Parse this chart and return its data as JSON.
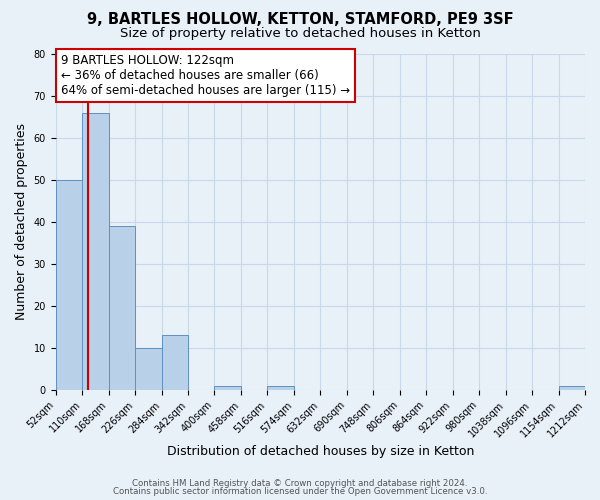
{
  "title": "9, BARTLES HOLLOW, KETTON, STAMFORD, PE9 3SF",
  "subtitle": "Size of property relative to detached houses in Ketton",
  "xlabel": "Distribution of detached houses by size in Ketton",
  "ylabel": "Number of detached properties",
  "bar_edges": [
    52,
    110,
    168,
    226,
    284,
    342,
    400,
    458,
    516,
    574,
    632,
    690,
    748,
    806,
    864,
    922,
    980,
    1038,
    1096,
    1154,
    1212
  ],
  "bar_values": [
    50,
    66,
    39,
    10,
    13,
    0,
    1,
    0,
    1,
    0,
    0,
    0,
    0,
    0,
    0,
    0,
    0,
    0,
    0,
    1,
    0
  ],
  "bar_color": "#b8d0e8",
  "bar_edge_color": "#6090c0",
  "property_line_x": 122,
  "property_line_color": "#cc0000",
  "annotation_text": "9 BARTLES HOLLOW: 122sqm\n← 36% of detached houses are smaller (66)\n64% of semi-detached houses are larger (115) →",
  "annotation_box_color": "#ffffff",
  "annotation_box_edge_color": "#cc0000",
  "ylim": [
    0,
    80
  ],
  "yticks": [
    0,
    10,
    20,
    30,
    40,
    50,
    60,
    70,
    80
  ],
  "grid_color": "#c8d8e8",
  "bg_color": "#e8f0f8",
  "footer_line1": "Contains HM Land Registry data © Crown copyright and database right 2024.",
  "footer_line2": "Contains public sector information licensed under the Open Government Licence v3.0.",
  "title_fontsize": 10.5,
  "subtitle_fontsize": 9.5,
  "tick_label_size": 7,
  "axis_label_size": 9
}
